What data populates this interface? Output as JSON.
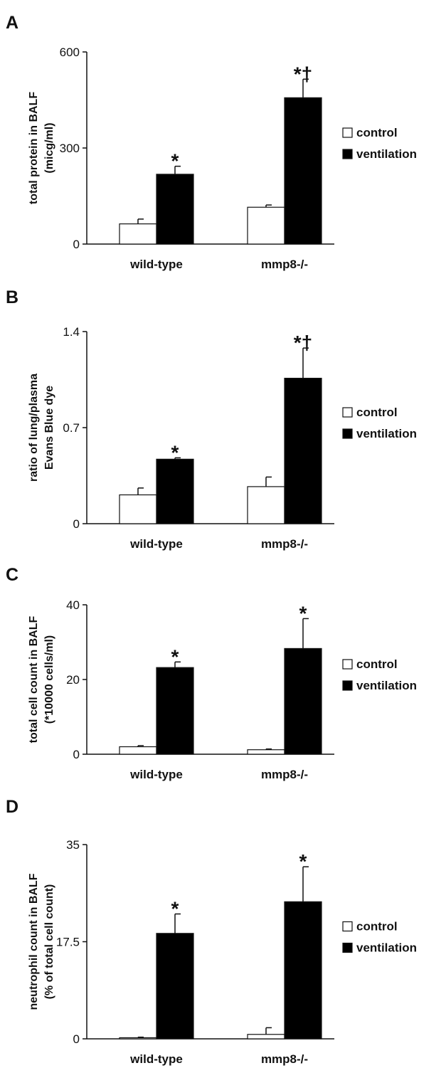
{
  "colors": {
    "control": "#ffffff",
    "ventilation": "#000000",
    "axis": "#111111"
  },
  "chart_data": [
    {
      "type": "bar",
      "panel": "A",
      "ylabel_lines": [
        "total protein in BALF",
        "(micg/ml)"
      ],
      "ylim": [
        0,
        600
      ],
      "yticks": [
        0,
        300,
        600
      ],
      "ytick_labels": [
        "0",
        "300",
        "600"
      ],
      "categories": [
        "wild-type",
        "mmp8-/-"
      ],
      "series": [
        {
          "name": "control",
          "values": [
            63,
            115
          ],
          "errors": [
            15,
            7
          ]
        },
        {
          "name": "ventilation",
          "values": [
            218,
            457
          ],
          "errors": [
            25,
            58
          ]
        }
      ],
      "annotations": [
        {
          "category": 0,
          "series": 1,
          "text": "*"
        },
        {
          "category": 1,
          "series": 1,
          "text": "*†"
        }
      ],
      "legend": [
        "control",
        "ventilation"
      ]
    },
    {
      "type": "bar",
      "panel": "B",
      "ylabel_lines": [
        "ratio of lung/plasma",
        "Evans Blue dye"
      ],
      "ylim": [
        0,
        1.4
      ],
      "yticks": [
        0,
        0.7,
        1.4
      ],
      "ytick_labels": [
        "0",
        "0.7",
        "1.4"
      ],
      "categories": [
        "wild-type",
        "mmp8-/-"
      ],
      "series": [
        {
          "name": "control",
          "values": [
            0.21,
            0.27
          ],
          "errors": [
            0.05,
            0.07
          ]
        },
        {
          "name": "ventilation",
          "values": [
            0.47,
            1.06
          ],
          "errors": [
            0.01,
            0.22
          ]
        }
      ],
      "annotations": [
        {
          "category": 0,
          "series": 1,
          "text": "*"
        },
        {
          "category": 1,
          "series": 1,
          "text": "*†"
        }
      ],
      "legend": [
        "control",
        "ventilation"
      ]
    },
    {
      "type": "bar",
      "panel": "C",
      "ylabel_lines": [
        "total cell count in BALF",
        "(*10000 cells/ml)"
      ],
      "ylim": [
        0,
        40
      ],
      "yticks": [
        0,
        20,
        40
      ],
      "ytick_labels": [
        "0",
        "20",
        "40"
      ],
      "categories": [
        "wild-type",
        "mmp8-/-"
      ],
      "series": [
        {
          "name": "control",
          "values": [
            2.0,
            1.2
          ],
          "errors": [
            0.3,
            0.2
          ]
        },
        {
          "name": "ventilation",
          "values": [
            23.2,
            28.3
          ],
          "errors": [
            1.5,
            8.0
          ]
        }
      ],
      "annotations": [
        {
          "category": 0,
          "series": 1,
          "text": "*"
        },
        {
          "category": 1,
          "series": 1,
          "text": "*"
        }
      ],
      "legend": [
        "control",
        "ventilation"
      ]
    },
    {
      "type": "bar",
      "panel": "D",
      "ylabel_lines": [
        "neutrophil count in BALF",
        "(% of total cell count)"
      ],
      "ylim": [
        0,
        35
      ],
      "yticks": [
        0,
        17.5,
        35
      ],
      "ytick_labels": [
        "0",
        "17.5",
        "35"
      ],
      "categories": [
        "wild-type",
        "mmp8-/-"
      ],
      "series": [
        {
          "name": "control",
          "values": [
            0.2,
            0.8
          ],
          "errors": [
            0.1,
            1.2
          ]
        },
        {
          "name": "ventilation",
          "values": [
            19.0,
            24.7
          ],
          "errors": [
            3.5,
            6.3
          ]
        }
      ],
      "annotations": [
        {
          "category": 0,
          "series": 1,
          "text": "*"
        },
        {
          "category": 1,
          "series": 1,
          "text": "*"
        }
      ],
      "legend": [
        "control",
        "ventilation"
      ]
    }
  ]
}
